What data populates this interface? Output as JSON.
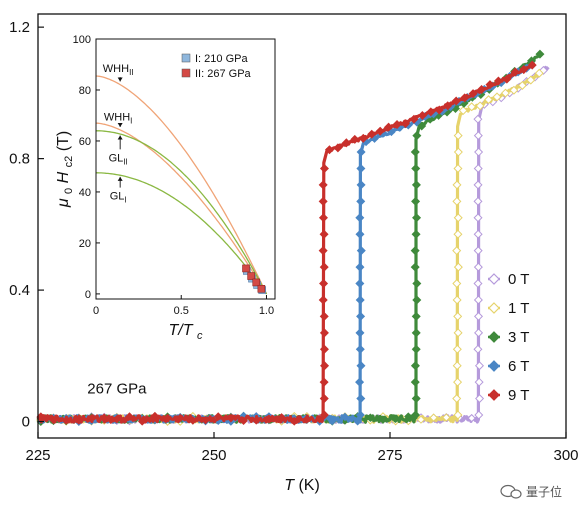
{
  "chart_data": [
    {
      "type": "scatter",
      "xlabel": "T",
      "xunit": "(K)",
      "ylabel": "",
      "xlim": [
        225,
        300
      ],
      "ylim": [
        -0.05,
        1.24
      ],
      "xticks": [
        225,
        250,
        275,
        300
      ],
      "yticks": [
        0,
        0.4,
        0.8,
        1.2
      ],
      "xtick_labels": [
        "225",
        "250",
        "275",
        "300"
      ],
      "ytick_labels": [
        "0",
        "0.4",
        "0.8",
        "1.2"
      ],
      "annotation": "267 GPa",
      "legend_position": "bottom-right",
      "series": [
        {
          "name": "0 T",
          "color": "#b59adb",
          "marker": "diamond",
          "open": true,
          "transition": 287.6,
          "normal_start": 0.955,
          "normal_end": 1.08,
          "x_end": 297.5
        },
        {
          "name": "1 T",
          "color": "#e6d36b",
          "marker": "diamond",
          "open": true,
          "transition": 284.6,
          "normal_start": 0.935,
          "normal_end": 1.06,
          "x_end": 296.5
        },
        {
          "name": "3 T",
          "color": "#3f8a3b",
          "marker": "diamond",
          "open": false,
          "transition": 278.7,
          "normal_start": 0.895,
          "normal_end": 1.12,
          "x_end": 296.5
        },
        {
          "name": "6 T",
          "color": "#4a86c5",
          "marker": "diamond",
          "open": false,
          "transition": 270.8,
          "normal_start": 0.845,
          "normal_end": 1.09,
          "x_end": 295.5
        },
        {
          "name": "9 T",
          "color": "#c8302c",
          "marker": "diamond",
          "open": false,
          "transition": 265.6,
          "normal_start": 0.82,
          "normal_end": 1.09,
          "x_end": 295.5
        }
      ]
    },
    {
      "type": "line",
      "inset": true,
      "xlabel": "T/T",
      "xlabel_sub": "c",
      "ylabel_mu": "μ",
      "ylabel_mu_sub": "0",
      "ylabel_h": "H",
      "ylabel_h_sub": "c2",
      "ylabel_unit": " (T)",
      "xlim": [
        0,
        1.05
      ],
      "ylim": [
        -2,
        100
      ],
      "xticks": [
        0,
        0.5,
        1.0
      ],
      "yticks": [
        0,
        20,
        40,
        60,
        80,
        100
      ],
      "xtick_labels": [
        "0",
        "0.5",
        "1.0"
      ],
      "ytick_labels": [
        "0",
        "20",
        "40",
        "60",
        "80",
        "100"
      ],
      "legend": [
        {
          "label": "I: 210 GPa",
          "color": "#8fb7dd"
        },
        {
          "label": "II: 267 GPa",
          "color": "#d44a45"
        }
      ],
      "curves": [
        {
          "label_main": "WHH",
          "label_sub": "II",
          "h0": 85.5,
          "kind": "whh",
          "color": "#f0a477",
          "label_x": 0.13,
          "label_y": 87
        },
        {
          "label_main": "WHH",
          "label_sub": "I",
          "h0": 67,
          "kind": "whh",
          "color": "#f0a477",
          "label_x": 0.13,
          "label_y": 68
        },
        {
          "label_main": "GL",
          "label_sub": "II",
          "h0": 64,
          "kind": "gl",
          "color": "#8ab842",
          "label_x": 0.13,
          "label_y": 52
        },
        {
          "label_main": "GL",
          "label_sub": "I",
          "h0": 47.5,
          "kind": "gl",
          "color": "#8ab842",
          "label_x": 0.13,
          "label_y": 37
        }
      ],
      "points_I": [
        [
          0.885,
          9
        ],
        [
          0.915,
          6
        ],
        [
          0.945,
          3.5
        ],
        [
          0.975,
          1.5
        ]
      ],
      "points_II": [
        [
          0.88,
          10
        ],
        [
          0.91,
          7
        ],
        [
          0.94,
          4.5
        ],
        [
          0.97,
          2
        ]
      ]
    }
  ],
  "watermark": {
    "text": "量子位",
    "icon": "wechat-bubble-icon"
  }
}
